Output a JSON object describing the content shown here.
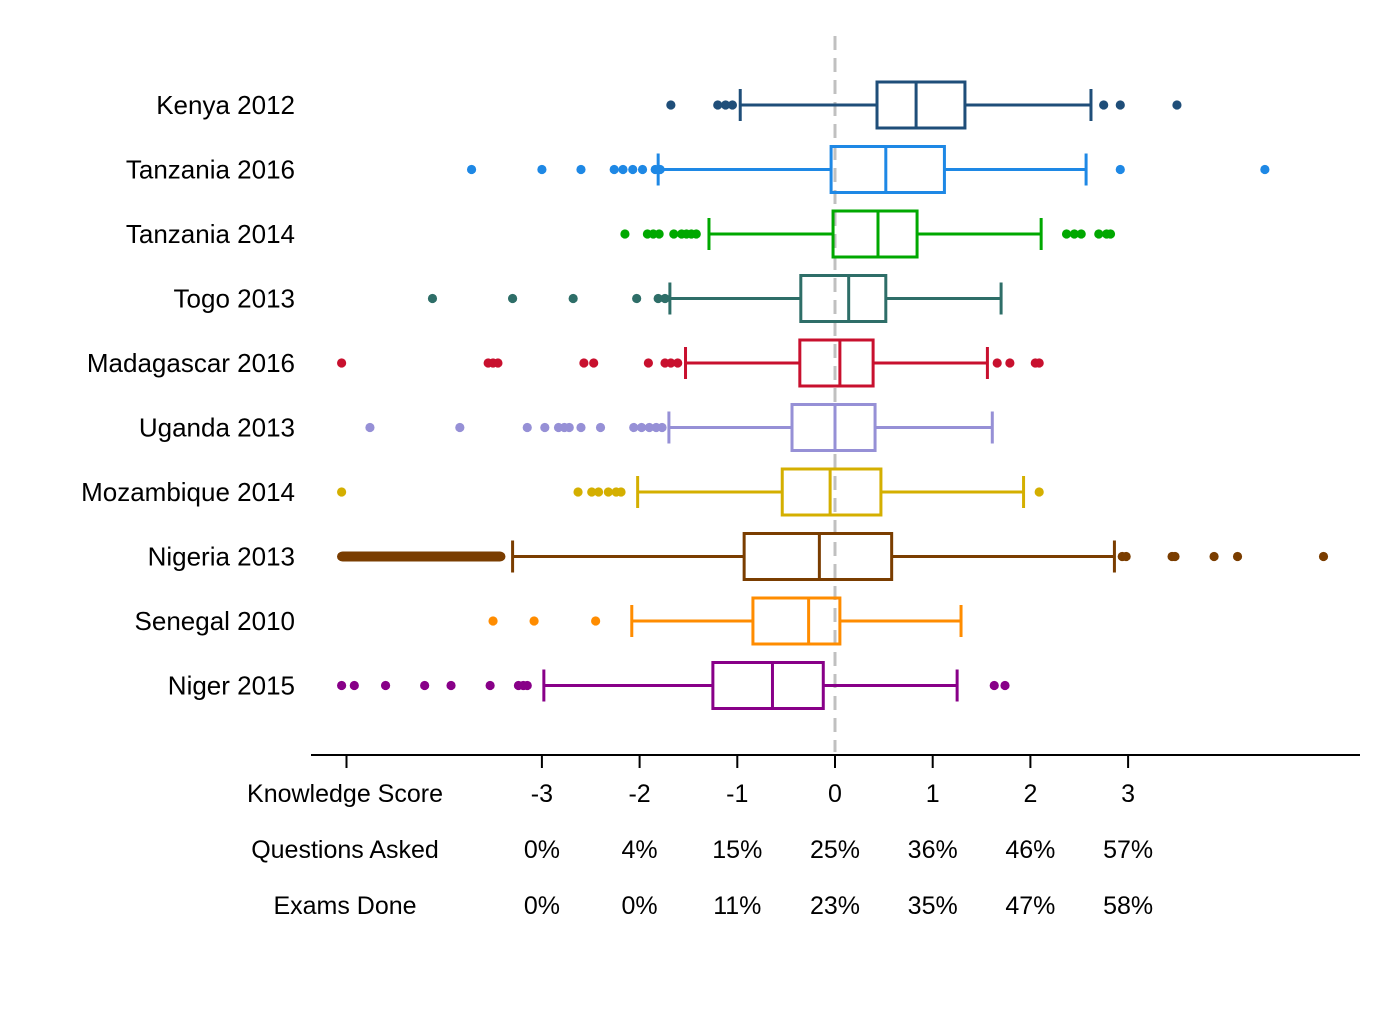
{
  "chart_data": {
    "type": "boxplot",
    "orientation": "horizontal",
    "xlim": [
      -3.35,
      5.4
    ],
    "zero_reference_line": true,
    "grid": false,
    "legend": "none",
    "categories": [
      {
        "name": "Kenya 2012",
        "color": "#1f4e79",
        "whisker_low": -0.97,
        "q1": 0.43,
        "median": 0.83,
        "q3": 1.33,
        "whisker_high": 2.62,
        "outliers": [
          -1.68,
          -1.2,
          -1.12,
          -1.05,
          2.75,
          2.92,
          3.5
        ]
      },
      {
        "name": "Tanzania 2016",
        "color": "#1e88e5",
        "whisker_low": -1.81,
        "q1": -0.04,
        "median": 0.52,
        "q3": 1.12,
        "whisker_high": 2.57,
        "outliers": [
          -3.0,
          -1.84,
          -1.79,
          -2.26,
          -2.17,
          -2.07,
          -1.97,
          -2.6,
          -3.72,
          2.92,
          4.4
        ]
      },
      {
        "name": "Tanzania 2014",
        "color": "#00a800",
        "whisker_low": -1.29,
        "q1": -0.02,
        "median": 0.44,
        "q3": 0.84,
        "whisker_high": 2.11,
        "outliers": [
          -2.15,
          -1.92,
          -1.86,
          -1.8,
          -1.65,
          -1.57,
          -1.52,
          -1.47,
          -1.42,
          2.37,
          2.45,
          2.52,
          2.7,
          2.78,
          2.82
        ]
      },
      {
        "name": "Togo 2013",
        "color": "#2e6e68",
        "whisker_low": -1.69,
        "q1": -0.35,
        "median": 0.14,
        "q3": 0.52,
        "whisker_high": 1.7,
        "outliers": [
          -4.12,
          -3.3,
          -2.68,
          -2.03,
          -1.81,
          -1.74
        ]
      },
      {
        "name": "Madagascar 2016",
        "color": "#c8102e",
        "whisker_low": -1.53,
        "q1": -0.36,
        "median": 0.05,
        "q3": 0.39,
        "whisker_high": 1.56,
        "outliers": [
          -5.05,
          -3.55,
          -3.5,
          -3.45,
          -2.57,
          -2.47,
          -1.91,
          -1.74,
          -1.68,
          -1.61,
          1.66,
          1.79,
          2.05,
          2.09
        ]
      },
      {
        "name": "Uganda 2013",
        "color": "#9690d6",
        "whisker_low": -1.7,
        "q1": -0.44,
        "median": 0.0,
        "q3": 0.41,
        "whisker_high": 1.61,
        "outliers": [
          -4.76,
          -3.84,
          -3.15,
          -2.97,
          -2.83,
          -2.77,
          -2.72,
          -2.6,
          -2.4,
          -2.06,
          -1.98,
          -1.9,
          -1.83,
          -1.77
        ]
      },
      {
        "name": "Mozambique 2014",
        "color": "#d4af00",
        "whisker_low": -2.02,
        "q1": -0.54,
        "median": -0.05,
        "q3": 0.47,
        "whisker_high": 1.93,
        "outliers": [
          -5.05,
          -2.63,
          -2.49,
          -2.42,
          -2.32,
          -2.24,
          -2.19,
          2.09
        ]
      },
      {
        "name": "Nigeria 2013",
        "color": "#7a3d00",
        "whisker_low": -3.3,
        "q1": -0.93,
        "median": -0.16,
        "q3": 0.58,
        "whisker_high": 2.86,
        "outliers": [
          -5.05,
          -4.75,
          -4.45,
          -4.15,
          -3.85,
          -3.55,
          -3.42,
          2.94,
          2.98,
          3.45,
          3.48,
          3.88,
          4.12,
          5.0
        ]
      },
      {
        "name": "Senegal 2010",
        "color": "#ff8c00",
        "whisker_low": -2.08,
        "q1": -0.84,
        "median": -0.27,
        "q3": 0.05,
        "whisker_high": 1.29,
        "outliers": [
          -3.5,
          -3.08,
          -2.45
        ]
      },
      {
        "name": "Niger 2015",
        "color": "#880088",
        "whisker_low": -2.98,
        "q1": -1.25,
        "median": -0.64,
        "q3": -0.12,
        "whisker_high": 1.25,
        "outliers": [
          -5.05,
          -4.92,
          -4.6,
          -4.2,
          -3.93,
          -3.53,
          -3.24,
          -3.19,
          -3.15,
          1.63,
          1.74
        ]
      }
    ],
    "axis_rows": [
      {
        "title": "Knowledge Score",
        "ticks": [
          {
            "x": -3,
            "label": "-3"
          },
          {
            "x": -2,
            "label": "-2"
          },
          {
            "x": -1,
            "label": "-1"
          },
          {
            "x": 0,
            "label": "0"
          },
          {
            "x": 1,
            "label": "1"
          },
          {
            "x": 2,
            "label": "2"
          },
          {
            "x": 3,
            "label": "3"
          }
        ]
      },
      {
        "title": "Questions Asked",
        "ticks": [
          {
            "x": -3,
            "label": "0%"
          },
          {
            "x": -2,
            "label": "4%"
          },
          {
            "x": -1,
            "label": "15%"
          },
          {
            "x": 0,
            "label": "25%"
          },
          {
            "x": 1,
            "label": "36%"
          },
          {
            "x": 2,
            "label": "46%"
          },
          {
            "x": 3,
            "label": "57%"
          }
        ]
      },
      {
        "title": "Exams Done",
        "ticks": [
          {
            "x": -3,
            "label": "0%"
          },
          {
            "x": -2,
            "label": "0%"
          },
          {
            "x": -1,
            "label": "11%"
          },
          {
            "x": 0,
            "label": "23%"
          },
          {
            "x": 1,
            "label": "35%"
          },
          {
            "x": 2,
            "label": "47%"
          },
          {
            "x": 3,
            "label": "58%"
          }
        ]
      }
    ],
    "axis_tick_marks": [
      -5,
      -3,
      -2,
      -1,
      0,
      1,
      2,
      3
    ]
  }
}
